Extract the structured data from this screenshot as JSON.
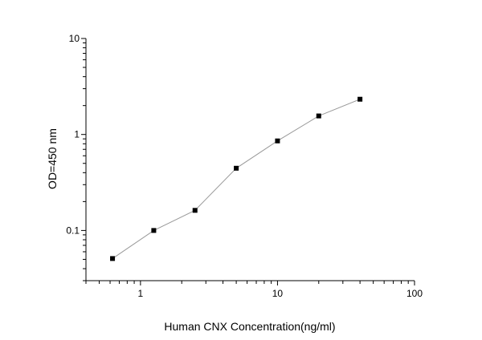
{
  "chart_data": {
    "type": "line",
    "title": "",
    "xlabel": "Human CNX Concentration(ng/ml)",
    "ylabel": "OD=450 nm",
    "x_scale": "log",
    "y_scale": "log",
    "xlim": [
      0.4,
      100
    ],
    "ylim": [
      0.03,
      10
    ],
    "x_ticks": [
      "1",
      "10",
      "100"
    ],
    "y_ticks": [
      "0.1",
      "1",
      "10"
    ],
    "grid": false,
    "marker": "square",
    "colors": {
      "line": "#999999",
      "marker": "#000000"
    },
    "series": [
      {
        "x": [
          0.625,
          1.25,
          2.5,
          5,
          10,
          20,
          40
        ],
        "y": [
          0.051,
          0.1,
          0.162,
          0.445,
          0.857,
          1.56,
          2.33
        ]
      }
    ]
  }
}
